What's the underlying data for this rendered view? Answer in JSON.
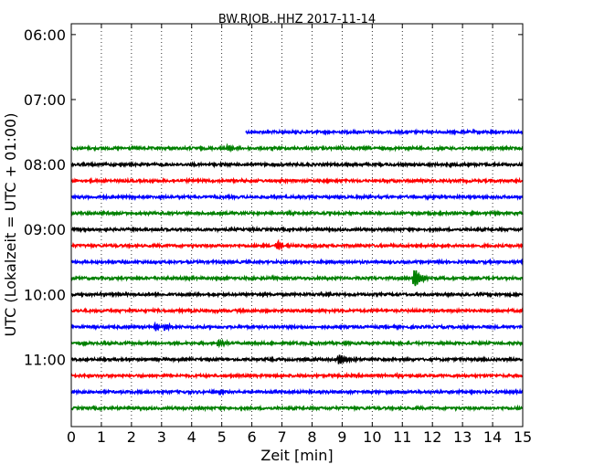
{
  "chart_data": {
    "type": "line",
    "title": "BW.RJOB..HHZ 2017-11-14",
    "xlabel": "Zeit  [min]",
    "ylabel": "UTC (Lokalzeit = UTC + 01:00)",
    "xlim": [
      0,
      15
    ],
    "xticks": [
      0,
      1,
      2,
      3,
      4,
      5,
      6,
      7,
      8,
      9,
      10,
      11,
      12,
      13,
      14,
      15
    ],
    "ylim_minutes": [
      350,
      722
    ],
    "yticks": [
      {
        "minutes": 360,
        "label": "06:00"
      },
      {
        "minutes": 420,
        "label": "07:00"
      },
      {
        "minutes": 480,
        "label": "08:00"
      },
      {
        "minutes": 540,
        "label": "09:00"
      },
      {
        "minutes": 600,
        "label": "10:00"
      },
      {
        "minutes": 660,
        "label": "11:00"
      }
    ],
    "grid": "vertical-dotted",
    "colors": [
      "#0000ff",
      "#008000",
      "#000000",
      "#ff0000"
    ],
    "traces": [
      {
        "start": "07:30",
        "color": "#0000ff",
        "x_start": 5.8,
        "events": []
      },
      {
        "start": "07:45",
        "color": "#008000",
        "x_start": 0,
        "events": [
          {
            "x": 5.2,
            "amp": 4
          }
        ]
      },
      {
        "start": "08:00",
        "color": "#000000",
        "x_start": 0,
        "events": [
          {
            "x": 12.6,
            "amp": 2
          }
        ]
      },
      {
        "start": "08:15",
        "color": "#ff0000",
        "x_start": 0,
        "events": [
          {
            "x": 10.8,
            "amp": 2
          }
        ]
      },
      {
        "start": "08:30",
        "color": "#0000ff",
        "x_start": 0,
        "events": []
      },
      {
        "start": "08:45",
        "color": "#008000",
        "x_start": 0,
        "events": []
      },
      {
        "start": "09:00",
        "color": "#000000",
        "x_start": 0,
        "events": []
      },
      {
        "start": "09:15",
        "color": "#ff0000",
        "x_start": 0,
        "events": [
          {
            "x": 6.85,
            "amp": 5
          }
        ]
      },
      {
        "start": "09:30",
        "color": "#0000ff",
        "x_start": 0,
        "events": [
          {
            "x": 12.2,
            "amp": 2
          }
        ]
      },
      {
        "start": "09:45",
        "color": "#008000",
        "x_start": 0,
        "events": [
          {
            "x": 11.4,
            "amp": 12
          }
        ]
      },
      {
        "start": "10:00",
        "color": "#000000",
        "x_start": 0,
        "events": []
      },
      {
        "start": "10:15",
        "color": "#ff0000",
        "x_start": 0,
        "events": []
      },
      {
        "start": "10:30",
        "color": "#0000ff",
        "x_start": 0,
        "events": [
          {
            "x": 2.8,
            "amp": 4
          },
          {
            "x": 3.1,
            "amp": 3
          }
        ]
      },
      {
        "start": "10:45",
        "color": "#008000",
        "x_start": 0,
        "events": [
          {
            "x": 4.9,
            "amp": 4
          }
        ]
      },
      {
        "start": "11:00",
        "color": "#000000",
        "x_start": 0,
        "events": [
          {
            "x": 8.9,
            "amp": 6
          }
        ]
      },
      {
        "start": "11:15",
        "color": "#ff0000",
        "x_start": 0,
        "events": [
          {
            "x": 10.8,
            "amp": 2
          }
        ]
      },
      {
        "start": "11:30",
        "color": "#0000ff",
        "x_start": 0,
        "events": []
      },
      {
        "start": "11:45",
        "color": "#008000",
        "x_start": 0,
        "events": []
      }
    ]
  }
}
